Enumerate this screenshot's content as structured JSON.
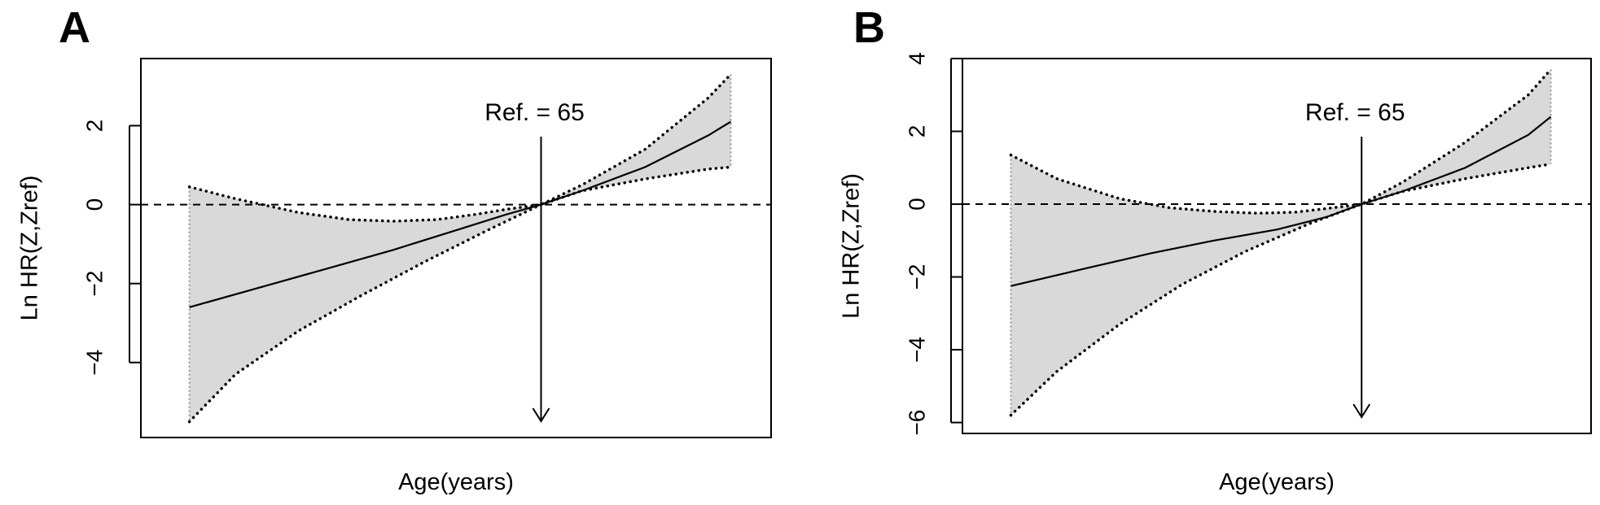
{
  "chart_data": [
    {
      "panel": "A",
      "type": "line",
      "xlabel": "Age(years)",
      "ylabel": "Ln HR(Z,Zref)",
      "yticks": [
        -4,
        -2,
        0,
        2
      ],
      "ylim": [
        -5.9,
        3.7
      ],
      "xlim": [
        0,
        1
      ],
      "annotation": {
        "text": "Ref. = 65",
        "x": 0.635
      },
      "reference_line_y": 0,
      "series": [
        {
          "role": "estimate",
          "line_style": "solid",
          "x": [
            0.077,
            0.2,
            0.3,
            0.4,
            0.5,
            0.58,
            0.635,
            0.7,
            0.8,
            0.9,
            0.936
          ],
          "y": [
            -2.6,
            -2.05,
            -1.6,
            -1.15,
            -0.65,
            -0.25,
            0.0,
            0.35,
            0.95,
            1.75,
            2.1
          ]
        },
        {
          "role": "upper",
          "line_style": "dotted",
          "x": [
            0.077,
            0.15,
            0.25,
            0.33,
            0.4,
            0.47,
            0.53,
            0.58,
            0.635,
            0.7,
            0.8,
            0.9,
            0.936
          ],
          "y": [
            0.45,
            0.15,
            -0.2,
            -0.38,
            -0.42,
            -0.38,
            -0.25,
            -0.12,
            0.0,
            0.5,
            1.4,
            2.7,
            3.3
          ]
        },
        {
          "role": "lower",
          "line_style": "dotted",
          "x": [
            0.077,
            0.15,
            0.25,
            0.35,
            0.45,
            0.55,
            0.635,
            0.7,
            0.8,
            0.9,
            0.936
          ],
          "y": [
            -5.5,
            -4.3,
            -3.2,
            -2.3,
            -1.45,
            -0.65,
            0.0,
            0.35,
            0.65,
            0.9,
            0.95
          ]
        }
      ]
    },
    {
      "panel": "B",
      "type": "line",
      "xlabel": "Age(years)",
      "ylabel": "Ln HR(Z,Zref)",
      "yticks": [
        -6,
        -4,
        -2,
        0,
        2,
        4
      ],
      "ylim": [
        -6.3,
        4.0
      ],
      "xlim": [
        0,
        1
      ],
      "annotation": {
        "text": "Ref. = 65",
        "x": 0.635
      },
      "reference_line_y": 0,
      "series": [
        {
          "role": "estimate",
          "line_style": "solid",
          "x": [
            0.077,
            0.2,
            0.3,
            0.4,
            0.5,
            0.58,
            0.635,
            0.7,
            0.8,
            0.9,
            0.936
          ],
          "y": [
            -2.25,
            -1.75,
            -1.35,
            -1.0,
            -0.7,
            -0.35,
            0.0,
            0.35,
            1.0,
            1.9,
            2.4
          ]
        },
        {
          "role": "upper",
          "line_style": "dotted",
          "x": [
            0.077,
            0.15,
            0.25,
            0.33,
            0.4,
            0.47,
            0.53,
            0.58,
            0.635,
            0.7,
            0.8,
            0.9,
            0.936
          ],
          "y": [
            1.35,
            0.7,
            0.15,
            -0.1,
            -0.2,
            -0.25,
            -0.22,
            -0.12,
            0.0,
            0.6,
            1.7,
            3.0,
            3.7
          ]
        },
        {
          "role": "lower",
          "line_style": "dotted",
          "x": [
            0.077,
            0.15,
            0.25,
            0.35,
            0.45,
            0.55,
            0.635,
            0.7,
            0.8,
            0.9,
            0.936
          ],
          "y": [
            -5.8,
            -4.6,
            -3.3,
            -2.2,
            -1.3,
            -0.55,
            0.0,
            0.35,
            0.7,
            1.0,
            1.1
          ]
        }
      ]
    }
  ]
}
